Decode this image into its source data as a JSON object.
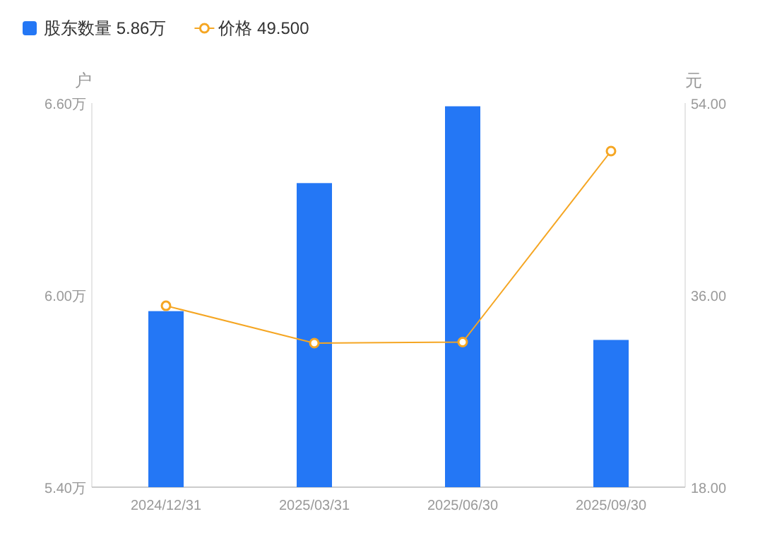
{
  "chart_data": {
    "type": "bar",
    "categories": [
      "2024/12/31",
      "2025/03/31",
      "2025/06/30",
      "2025/09/30"
    ],
    "ylabel": "户",
    "y2label": "元",
    "ylim": [
      5.4,
      6.6
    ],
    "yticks": [
      {
        "value": 5.4,
        "label": "5.40万"
      },
      {
        "value": 6.0,
        "label": "6.00万"
      },
      {
        "value": 6.6,
        "label": "6.60万"
      }
    ],
    "y2lim": [
      18,
      54
    ],
    "y2ticks": [
      {
        "value": 18,
        "label": "18.00"
      },
      {
        "value": 36,
        "label": "36.00"
      },
      {
        "value": 54,
        "label": "54.00"
      }
    ],
    "series": [
      {
        "name": "股东数量 5.86万",
        "color": "#2477f5",
        "values": [
          5.95,
          6.35,
          6.59,
          5.86
        ]
      },
      {
        "name": "价格 49.500",
        "type": "line",
        "axis": "y2",
        "color": "#f5a623",
        "marker": "circle",
        "values": [
          35.0,
          31.5,
          31.6,
          49.5
        ]
      }
    ],
    "legend": "top left",
    "grid": false
  }
}
